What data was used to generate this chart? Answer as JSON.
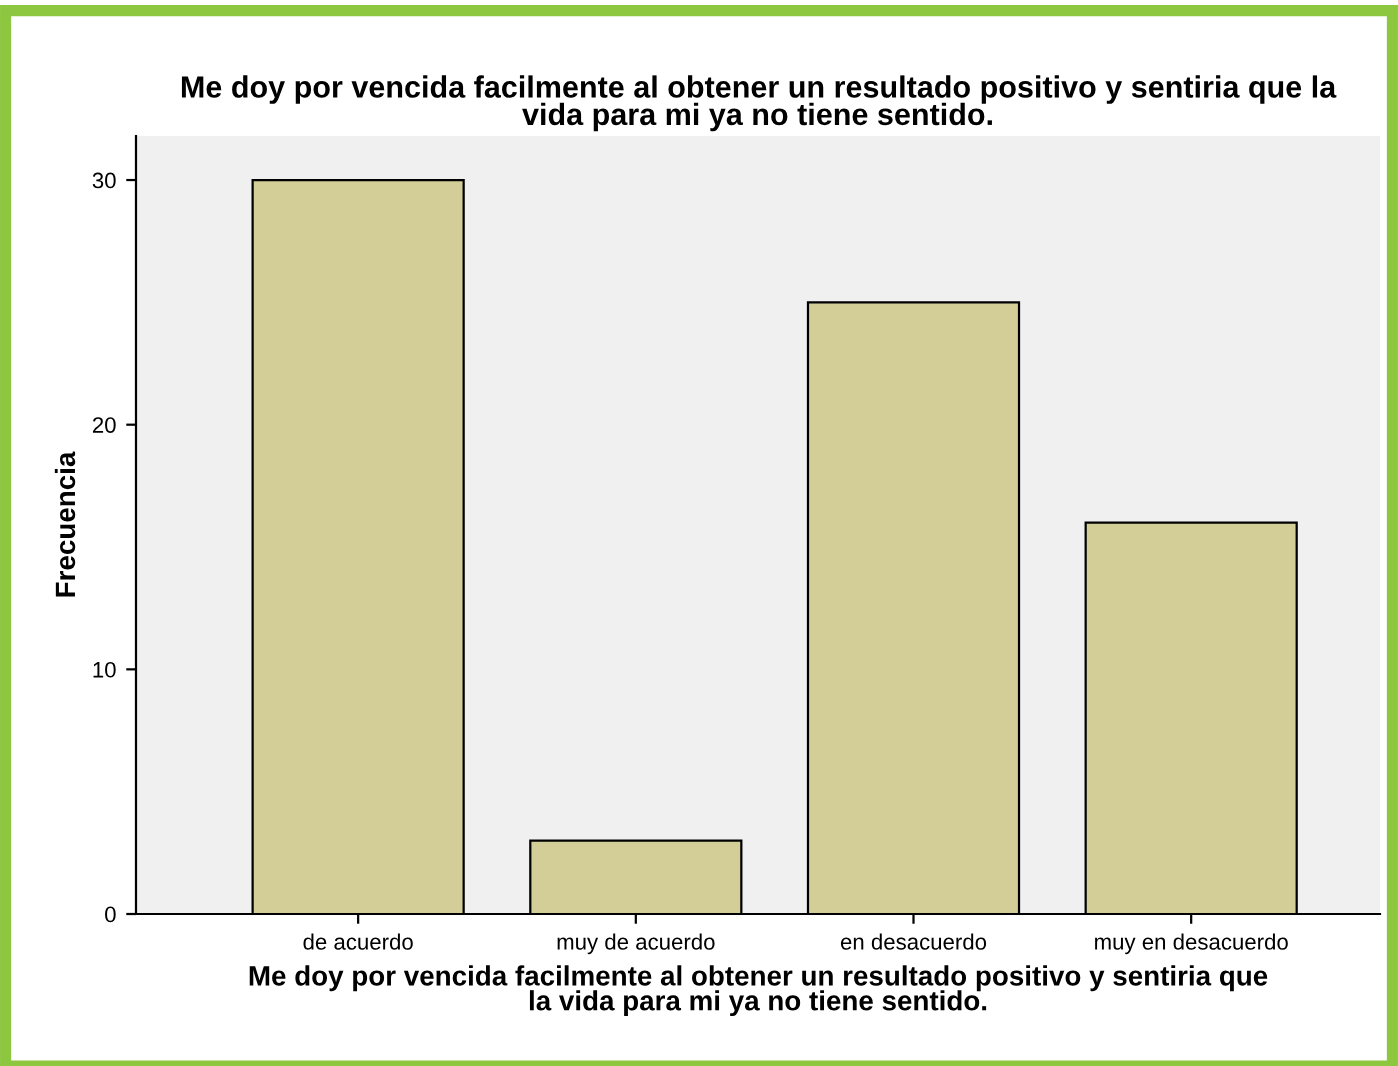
{
  "chart_data": {
    "type": "bar",
    "title": "Me doy por vencida facilmente al obtener un resultado positivo y sentiria que la\nvida para mi ya no tiene sentido.",
    "xlabel": "Me doy por vencida facilmente al obtener un resultado positivo y sentiria que\nla vida para mi ya no tiene sentido.",
    "ylabel": "Frecuencia",
    "categories": [
      "de acuerdo",
      "muy de acuerdo",
      "en desacuerdo",
      "muy en desacuerdo"
    ],
    "values": [
      30,
      3,
      25,
      16
    ],
    "color": "#d3ce97",
    "ylim": [
      0,
      31.8
    ],
    "yticks": [
      0,
      10,
      20,
      30
    ],
    "grid": false,
    "legend": false
  }
}
